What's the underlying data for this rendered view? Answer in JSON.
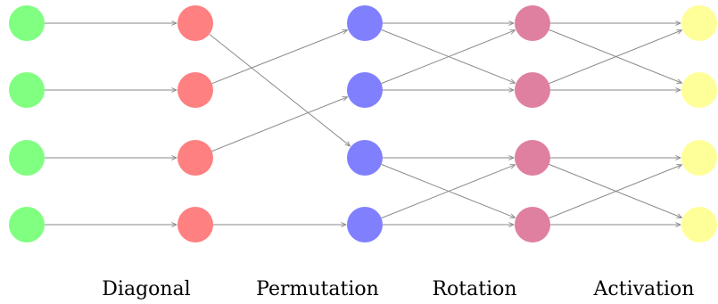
{
  "layers": [
    {
      "id": "input",
      "color": "#80ff80",
      "count": 4
    },
    {
      "id": "diagonal",
      "color": "#ff8080",
      "count": 4
    },
    {
      "id": "permutation",
      "color": "#8080ff",
      "count": 4
    },
    {
      "id": "rotation",
      "color": "#df80a0",
      "count": 4
    },
    {
      "id": "activation",
      "color": "#ffff99",
      "count": 4
    }
  ],
  "connections": [
    {
      "from": 0,
      "to": 1,
      "pairs": [
        [
          0,
          0
        ],
        [
          1,
          1
        ],
        [
          2,
          2
        ],
        [
          3,
          3
        ]
      ]
    },
    {
      "from": 1,
      "to": 2,
      "pairs": [
        [
          0,
          2
        ],
        [
          1,
          0
        ],
        [
          2,
          1
        ],
        [
          3,
          3
        ]
      ]
    },
    {
      "from": 2,
      "to": 3,
      "pairs": [
        [
          0,
          0
        ],
        [
          0,
          1
        ],
        [
          1,
          0
        ],
        [
          1,
          1
        ],
        [
          2,
          2
        ],
        [
          2,
          3
        ],
        [
          3,
          2
        ],
        [
          3,
          3
        ]
      ]
    },
    {
      "from": 3,
      "to": 4,
      "pairs": [
        [
          0,
          0
        ],
        [
          0,
          1
        ],
        [
          1,
          0
        ],
        [
          1,
          1
        ],
        [
          2,
          2
        ],
        [
          2,
          3
        ],
        [
          3,
          2
        ],
        [
          3,
          3
        ]
      ]
    }
  ],
  "edge_color": "#8a8a8a",
  "labels": {
    "diagonal": "Diagonal",
    "permutation": "Permutation",
    "rotation": "Rotation",
    "activation": "Activation"
  }
}
